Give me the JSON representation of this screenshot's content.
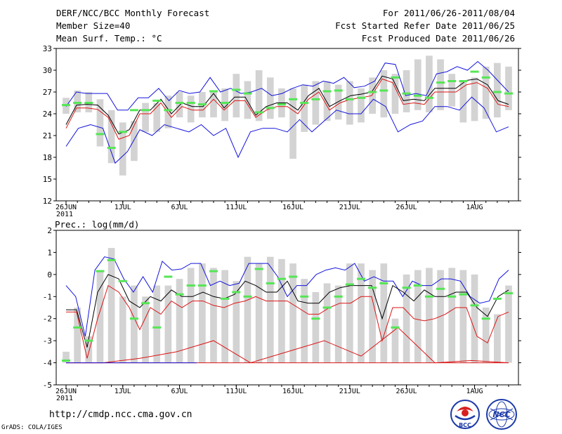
{
  "header": {
    "title": "DERF/NCC/BCC Monthly Forecast",
    "member_size": "Member Size=40",
    "variable": "Mean Surf. Temp.: °C",
    "for_range": "For 2011/06/26-2011/08/04",
    "started": "Fcst Started Refer Date 2011/06/25",
    "produced": "Fcst Produced Date 2011/06/26"
  },
  "footer": {
    "url": "http://cmdp.ncc.cma.gov.cn",
    "grads": "GrADS: COLA/IGES",
    "logo1_text": "BCC",
    "logo2_text": "NCC"
  },
  "colors": {
    "box": "#d3d3d3",
    "marker": "#55e655",
    "envelope": "#1414dc",
    "ensemble_mean": "#000000",
    "control": "#dc1414"
  },
  "chart_data": [
    {
      "type": "box-ensemble",
      "title": "Mean Surf. Temp.: °C",
      "ylim": [
        12,
        33
      ],
      "yticks": [
        12,
        15,
        18,
        21,
        24,
        27,
        30,
        33
      ],
      "x_tick_labels": [
        {
          "day": 0,
          "label": "26JUN"
        },
        {
          "day": 5,
          "label": "1JUL"
        },
        {
          "day": 10,
          "label": "6JUL"
        },
        {
          "day": 15,
          "label": "11JUL"
        },
        {
          "day": 20,
          "label": "16JUL"
        },
        {
          "day": 25,
          "label": "21JUL"
        },
        {
          "day": 30,
          "label": "26JUL"
        },
        {
          "day": 36,
          "label": "1AUG"
        }
      ],
      "year_label": "2011",
      "days": 40,
      "box_low": [
        24.0,
        24.2,
        24.2,
        19.5,
        17.2,
        15.5,
        17.5,
        21.5,
        21.5,
        22.0,
        23.5,
        22.8,
        23.5,
        23.5,
        23.0,
        23.5,
        23.3,
        23.0,
        23.3,
        23.5,
        17.8,
        21.5,
        22.5,
        23.0,
        23.2,
        22.5,
        22.8,
        24.0,
        23.5,
        24.0,
        24.2,
        24.5,
        24.2,
        24.5,
        25.0,
        22.8,
        23.0,
        23.3,
        23.5,
        24.5
      ],
      "box_high": [
        26.2,
        27.2,
        27.0,
        26.0,
        24.5,
        22.8,
        23.0,
        25.5,
        25.5,
        26.5,
        27.0,
        26.5,
        27.0,
        27.0,
        27.5,
        29.5,
        28.5,
        30.0,
        29.0,
        27.5,
        27.5,
        28.0,
        28.5,
        28.5,
        28.0,
        28.5,
        27.5,
        29.0,
        30.0,
        29.5,
        30.0,
        31.5,
        32.0,
        31.5,
        29.5,
        28.5,
        29.0,
        30.5,
        31.0,
        30.5
      ],
      "marker": [
        25.2,
        25.5,
        25.5,
        21.2,
        19.3,
        21.5,
        24.5,
        24.5,
        25.8,
        24.5,
        25.5,
        25.5,
        25.3,
        27.1,
        25.5,
        27.3,
        26.8,
        24.2,
        24.8,
        25.3,
        26.0,
        25.5,
        26.0,
        27.1,
        27.2,
        26.0,
        26.2,
        27.0,
        27.2,
        29.0,
        26.8,
        26.5,
        26.2,
        28.3,
        28.5,
        28.5,
        29.8,
        29.0,
        27.0,
        26.8
      ],
      "series": [
        {
          "name": "ensemble max",
          "color": "#1414dc",
          "values": [
            25.0,
            27.0,
            26.8,
            26.8,
            26.8,
            24.5,
            24.5,
            26.2,
            26.2,
            27.5,
            25.8,
            27.2,
            26.8,
            27.0,
            29.0,
            27.0,
            27.5,
            26.8,
            27.0,
            27.5,
            26.5,
            26.8,
            27.5,
            28.0,
            27.8,
            28.5,
            28.2,
            29.0,
            27.6,
            27.8,
            28.5,
            31.0,
            30.8,
            26.5,
            26.8,
            26.5,
            29.5,
            29.8,
            30.5,
            30.0,
            31.2,
            30.0,
            28.5,
            27.0
          ]
        },
        {
          "name": "ensemble mean",
          "color": "#000000",
          "values": [
            22.5,
            25.2,
            25.3,
            25.2,
            23.8,
            21.2,
            21.8,
            24.5,
            24.5,
            26.0,
            24.0,
            25.5,
            25.0,
            25.0,
            26.8,
            24.8,
            26.3,
            26.3,
            23.8,
            25.0,
            25.5,
            25.5,
            24.5,
            26.5,
            27.5,
            25.0,
            25.8,
            26.5,
            26.7,
            27.0,
            29.2,
            28.8,
            25.8,
            26.0,
            25.8,
            27.5,
            27.5,
            27.5,
            28.6,
            28.8,
            28.0,
            25.8,
            25.3
          ]
        },
        {
          "name": "control",
          "color": "#dc1414",
          "values": [
            22.0,
            24.8,
            24.8,
            24.6,
            23.5,
            20.5,
            21.0,
            24.0,
            24.0,
            25.5,
            23.5,
            25.0,
            24.5,
            24.5,
            26.0,
            24.5,
            25.8,
            25.8,
            23.5,
            24.5,
            25.0,
            25.0,
            24.0,
            26.0,
            27.0,
            24.5,
            25.5,
            26.0,
            26.2,
            26.5,
            28.8,
            28.3,
            25.3,
            25.5,
            25.3,
            27.0,
            27.0,
            27.0,
            28.0,
            28.3,
            27.5,
            25.3,
            25.0
          ]
        },
        {
          "name": "ensemble min",
          "color": "#1414dc",
          "values": [
            19.5,
            22.0,
            22.5,
            22.0,
            17.2,
            18.8,
            21.8,
            21.0,
            22.5,
            22.0,
            21.5,
            22.5,
            21.0,
            22.0,
            18.0,
            21.5,
            22.0,
            22.0,
            21.5,
            23.2,
            21.5,
            23.0,
            24.5,
            24.0,
            24.0,
            26.0,
            25.0,
            21.5,
            22.5,
            23.0,
            25.0,
            25.0,
            24.5,
            26.3,
            24.8,
            21.5,
            22.2
          ]
        }
      ]
    },
    {
      "type": "box-ensemble",
      "title": "Prec.: log(mm/d)",
      "ylim": [
        -5,
        2
      ],
      "yticks": [
        -5,
        -4,
        -3,
        -2,
        -1,
        0,
        1,
        2
      ],
      "x_tick_labels": [
        {
          "day": 0,
          "label": "26JUN"
        },
        {
          "day": 5,
          "label": "1JUL"
        },
        {
          "day": 10,
          "label": "6JUL"
        },
        {
          "day": 15,
          "label": "11JUL"
        },
        {
          "day": 20,
          "label": "16JUL"
        },
        {
          "day": 25,
          "label": "21JUL"
        },
        {
          "day": 30,
          "label": "26JUL"
        },
        {
          "day": 36,
          "label": "1AUG"
        }
      ],
      "year_label": "2011",
      "days": 40,
      "box_low": [
        -4.0,
        -4.0,
        -4.0,
        -4.0,
        -4.0,
        -4.0,
        -4.0,
        -4.0,
        -4.0,
        -4.0,
        -4.0,
        -4.0,
        -4.0,
        -4.0,
        -4.0,
        -4.0,
        -4.0,
        -4.0,
        -4.0,
        -4.0,
        -4.0,
        -4.0,
        -4.0,
        -4.0,
        -4.0,
        -4.0,
        -4.0,
        -4.0,
        -4.0,
        -4.0,
        -4.0,
        -4.0,
        -4.0,
        -4.0,
        -4.0,
        -4.0,
        -4.0,
        -4.0,
        -4.0,
        -4.0
      ],
      "box_high": [
        -3.5,
        -1.5,
        -2.8,
        0.2,
        1.2,
        -1.0,
        -0.5,
        -1.0,
        -0.5,
        -0.5,
        -0.2,
        0.3,
        0.5,
        0.3,
        0.2,
        -0.3,
        0.8,
        0.5,
        0.8,
        0.7,
        0.5,
        -0.2,
        -0.8,
        -0.4,
        -0.5,
        0.5,
        0.5,
        0.2,
        0.5,
        -2.0,
        0.0,
        0.2,
        0.3,
        0.2,
        0.3,
        0.2,
        0.0,
        -1.5,
        -1.8,
        -0.5
      ],
      "marker": [
        -3.9,
        -2.4,
        -3.0,
        0.15,
        0.65,
        -0.3,
        -2.0,
        -1.3,
        -2.4,
        -0.1,
        -0.9,
        -0.5,
        -0.5,
        0.15,
        -1.1,
        -0.8,
        -1.0,
        0.25,
        -0.4,
        -0.2,
        -0.1,
        -1.0,
        -2.0,
        -1.5,
        -1.0,
        -0.45,
        -0.2,
        -0.6,
        -0.4,
        -2.4,
        -0.6,
        -0.5,
        -1.0,
        -0.65,
        -1.0,
        -0.9,
        -1.4,
        -2.0,
        -1.1,
        -0.85
      ],
      "series": [
        {
          "name": "ensemble max",
          "color": "#1414dc",
          "values": [
            -0.5,
            -1.0,
            -2.8,
            0.2,
            0.8,
            0.7,
            -0.2,
            -0.8,
            -0.1,
            -0.8,
            0.6,
            0.2,
            0.25,
            0.5,
            0.5,
            -0.5,
            -0.3,
            -0.5,
            -0.4,
            0.5,
            0.5,
            0.5,
            -0.1,
            -1.0,
            -0.5,
            -0.5,
            0.0,
            0.2,
            0.3,
            0.2,
            0.5,
            -0.3,
            -0.1,
            -0.3,
            -0.3,
            -1.0,
            -0.3,
            -0.5,
            -0.5,
            -0.2,
            -0.2,
            -0.3,
            -1.0,
            -1.3,
            -1.2,
            -0.2,
            0.2
          ]
        },
        {
          "name": "ensemble mean",
          "color": "#000000",
          "values": [
            -1.6,
            -1.6,
            -3.3,
            -0.8,
            0.0,
            -0.2,
            -1.2,
            -1.5,
            -1.0,
            -1.2,
            -0.7,
            -1.0,
            -1.0,
            -0.8,
            -1.0,
            -1.1,
            -0.9,
            -0.3,
            -0.5,
            -0.8,
            -0.8,
            -0.3,
            -1.2,
            -1.3,
            -1.3,
            -0.8,
            -0.6,
            -0.5,
            -0.5,
            -0.5,
            -2.0,
            -0.5,
            -0.8,
            -1.2,
            -0.7,
            -1.0,
            -1.0,
            -0.8,
            -0.8,
            -1.5,
            -1.9,
            -1.0,
            -0.7
          ]
        },
        {
          "name": "control",
          "color": "#dc1414",
          "values": [
            -1.7,
            -1.7,
            -3.8,
            -2.0,
            -0.5,
            -0.8,
            -1.5,
            -2.5,
            -1.5,
            -1.8,
            -1.2,
            -1.5,
            -1.2,
            -1.2,
            -1.4,
            -1.5,
            -1.3,
            -1.2,
            -1.0,
            -1.2,
            -1.2,
            -1.2,
            -1.5,
            -1.8,
            -1.8,
            -1.5,
            -1.3,
            -1.3,
            -1.0,
            -1.0,
            -3.0,
            -1.5,
            -1.5,
            -2.0,
            -2.1,
            -2.0,
            -1.8,
            -1.5,
            -1.5,
            -2.8,
            -3.1,
            -1.9,
            -1.7
          ]
        },
        {
          "name": "ensemble min",
          "color": "#dc1414",
          "values": [
            -4.0,
            -4.0,
            -3.8,
            -3.5,
            -3.0,
            -4.0,
            -3.5,
            -3.0,
            -3.7,
            -2.4,
            -4.0,
            -3.9,
            -4.0
          ]
        }
      ]
    }
  ]
}
